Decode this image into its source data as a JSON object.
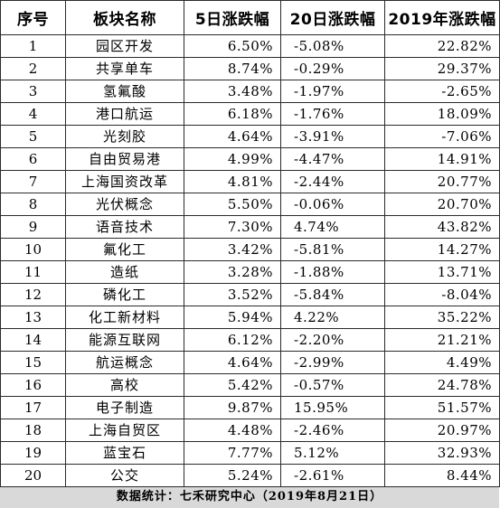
{
  "headers": [
    "序号",
    "板块名称",
    "5日涨跌幅",
    "20日涨跌幅",
    "2019年涨跌幅"
  ],
  "rows": [
    [
      "1",
      "园区开发",
      "6.50%",
      "-5.08%",
      "22.82%"
    ],
    [
      "2",
      "共享单车",
      "8.74%",
      "-0.29%",
      "29.37%"
    ],
    [
      "3",
      "氢氟酸",
      "3.48%",
      "-1.97%",
      "-2.65%"
    ],
    [
      "4",
      "港口航运",
      "6.18%",
      "-1.76%",
      "18.09%"
    ],
    [
      "5",
      "光刻胶",
      "4.64%",
      "-3.91%",
      "-7.06%"
    ],
    [
      "6",
      "自由贸易港",
      "4.99%",
      "-4.47%",
      "14.91%"
    ],
    [
      "7",
      "上海国资改革",
      "4.81%",
      "-2.44%",
      "20.77%"
    ],
    [
      "8",
      "光伏概念",
      "5.50%",
      "-0.06%",
      "20.70%"
    ],
    [
      "9",
      "语音技术",
      "7.30%",
      "4.74%",
      "43.82%"
    ],
    [
      "10",
      "氟化工",
      "3.42%",
      "-5.81%",
      "14.27%"
    ],
    [
      "11",
      "造纸",
      "3.28%",
      "-1.88%",
      "13.71%"
    ],
    [
      "12",
      "磷化工",
      "3.52%",
      "-5.84%",
      "-8.04%"
    ],
    [
      "13",
      "化工新材料",
      "5.94%",
      "4.22%",
      "35.22%"
    ],
    [
      "14",
      "能源互联网",
      "6.12%",
      "-2.20%",
      "21.21%"
    ],
    [
      "15",
      "航运概念",
      "4.64%",
      "-2.99%",
      "4.49%"
    ],
    [
      "16",
      "高校",
      "5.42%",
      "-0.57%",
      "24.78%"
    ],
    [
      "17",
      "电子制造",
      "9.87%",
      "15.95%",
      "51.57%"
    ],
    [
      "18",
      "上海自贸区",
      "4.48%",
      "-2.46%",
      "20.97%"
    ],
    [
      "19",
      "蓝宝石",
      "7.77%",
      "5.12%",
      "32.93%"
    ],
    [
      "20",
      "公交",
      "5.24%",
      "-2.61%",
      "8.44%"
    ]
  ],
  "footer": "数据统计：七禾研究中心（2019年8月21日）",
  "colors": {
    "footer_background": "#d9d9d9",
    "border": "#2b2b2b",
    "text": "#000000"
  }
}
